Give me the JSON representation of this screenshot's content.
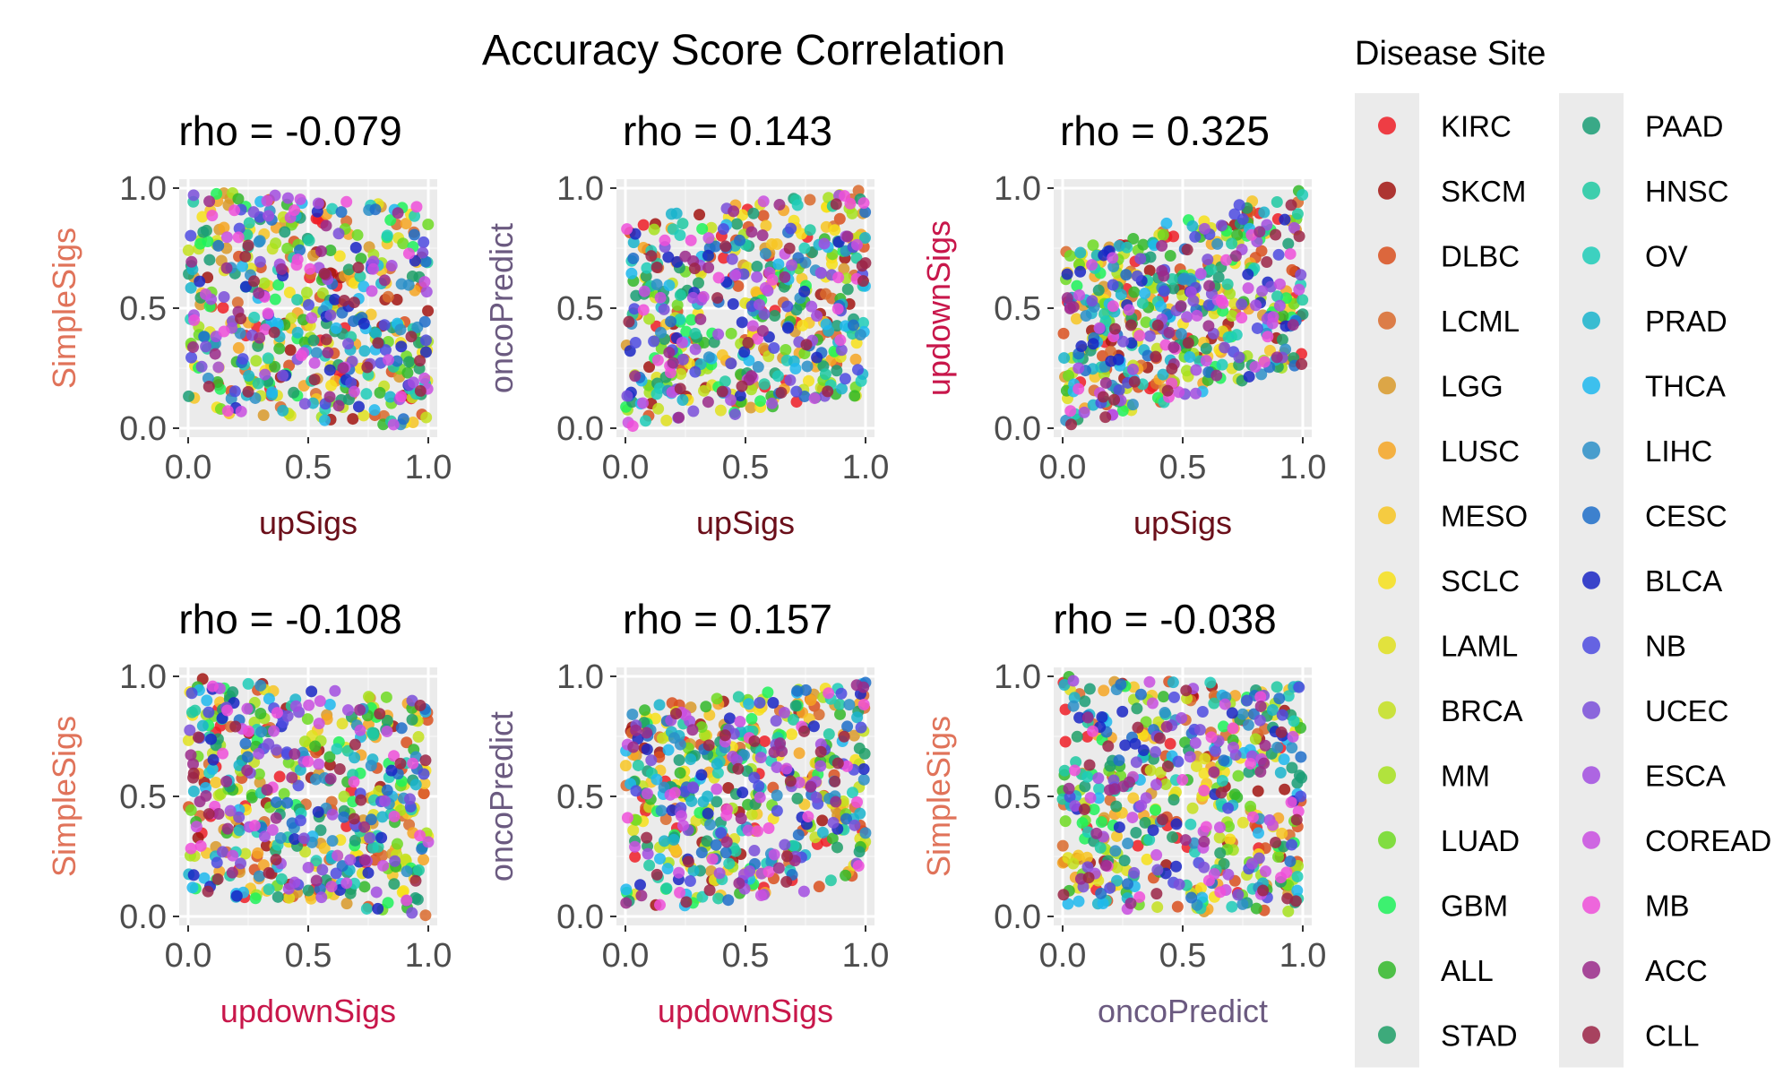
{
  "title": "Accuracy Score Correlation",
  "legend": {
    "title": "Disease Site",
    "placement": "right",
    "items": [
      {
        "label": "KIRC",
        "color": "#ee1f27"
      },
      {
        "label": "SKCM",
        "color": "#a21512"
      },
      {
        "label": "DLBC",
        "color": "#d9501f"
      },
      {
        "label": "LCML",
        "color": "#d96a2b"
      },
      {
        "label": "LGG",
        "color": "#d99a2a"
      },
      {
        "label": "LUSC",
        "color": "#f6a623"
      },
      {
        "label": "MESO",
        "color": "#f7c523"
      },
      {
        "label": "SCLC",
        "color": "#f7e11a"
      },
      {
        "label": "LAML",
        "color": "#e0e01f"
      },
      {
        "label": "BRCA",
        "color": "#c4e01e"
      },
      {
        "label": "MM",
        "color": "#a7e21e"
      },
      {
        "label": "LUAD",
        "color": "#6fda22"
      },
      {
        "label": "GBM",
        "color": "#1ff25a"
      },
      {
        "label": "ALL",
        "color": "#33b82a"
      },
      {
        "label": "STAD",
        "color": "#1f9f67"
      },
      {
        "label": "PAAD",
        "color": "#1a9d76"
      },
      {
        "label": "HNSC",
        "color": "#1ec9a2"
      },
      {
        "label": "OV",
        "color": "#1fcdb8"
      },
      {
        "label": "PRAD",
        "color": "#1ab4cc"
      },
      {
        "label": "THCA",
        "color": "#1eb8ee"
      },
      {
        "label": "LIHC",
        "color": "#2c8fc8"
      },
      {
        "label": "CESC",
        "color": "#1f6fc9"
      },
      {
        "label": "BLCA",
        "color": "#1a26c4"
      },
      {
        "label": "NB",
        "color": "#4e4be0"
      },
      {
        "label": "UCEC",
        "color": "#7a4fd9"
      },
      {
        "label": "ESCA",
        "color": "#a24ee0"
      },
      {
        "label": "COREAD",
        "color": "#c94fe0"
      },
      {
        "label": "MB",
        "color": "#ee4fd9"
      },
      {
        "label": "ACC",
        "color": "#9a2a8a"
      },
      {
        "label": "CLL",
        "color": "#9b2446"
      }
    ]
  },
  "axis_title_colors": {
    "upSigs": "#6b0f1a",
    "SimpleSigs": "#e0735a",
    "oncoPredict": "#6b5a80",
    "updownSigs": "#c8174b"
  },
  "chart_data": [
    {
      "type": "scatter",
      "title": "rho = -0.079",
      "xlabel": "upSigs",
      "ylabel": "SimpleSigs",
      "xlim": [
        0,
        1
      ],
      "ylim": [
        0,
        1
      ],
      "xticks": [
        "0.0",
        "0.5",
        "1.0"
      ],
      "yticks": [
        "0.0",
        "0.5",
        "1.0"
      ],
      "grid": true,
      "points_per_site": 18,
      "rho": -0.079
    },
    {
      "type": "scatter",
      "title": "rho = 0.143",
      "xlabel": "upSigs",
      "ylabel": "oncoPredict",
      "xlim": [
        0,
        1
      ],
      "ylim": [
        0,
        1
      ],
      "xticks": [
        "0.0",
        "0.5",
        "1.0"
      ],
      "yticks": [
        "0.0",
        "0.5",
        "1.0"
      ],
      "grid": true,
      "points_per_site": 18,
      "rho": 0.143
    },
    {
      "type": "scatter",
      "title": "rho = 0.325",
      "xlabel": "upSigs",
      "ylabel": "updownSigs",
      "xlim": [
        0,
        1
      ],
      "ylim": [
        0,
        1
      ],
      "xticks": [
        "0.0",
        "0.5",
        "1.0"
      ],
      "yticks": [
        "0.0",
        "0.5",
        "1.0"
      ],
      "grid": true,
      "points_per_site": 18,
      "rho": 0.325
    },
    {
      "type": "scatter",
      "title": "rho = -0.108",
      "xlabel": "updownSigs",
      "ylabel": "SimpleSigs",
      "xlim": [
        0,
        1
      ],
      "ylim": [
        0,
        1
      ],
      "xticks": [
        "0.0",
        "0.5",
        "1.0"
      ],
      "yticks": [
        "0.0",
        "0.5",
        "1.0"
      ],
      "grid": true,
      "points_per_site": 18,
      "rho": -0.108
    },
    {
      "type": "scatter",
      "title": "rho = 0.157",
      "xlabel": "updownSigs",
      "ylabel": "oncoPredict",
      "xlim": [
        0,
        1
      ],
      "ylim": [
        0,
        1
      ],
      "xticks": [
        "0.0",
        "0.5",
        "1.0"
      ],
      "yticks": [
        "0.0",
        "0.5",
        "1.0"
      ],
      "grid": true,
      "points_per_site": 18,
      "rho": 0.157
    },
    {
      "type": "scatter",
      "title": "rho = -0.038",
      "xlabel": "oncoPredict",
      "ylabel": "SimpleSigs",
      "xlim": [
        0,
        1
      ],
      "ylim": [
        0,
        1
      ],
      "xticks": [
        "0.0",
        "0.5",
        "1.0"
      ],
      "yticks": [
        "0.0",
        "0.5",
        "1.0"
      ],
      "grid": true,
      "points_per_site": 18,
      "rho": -0.038
    }
  ]
}
